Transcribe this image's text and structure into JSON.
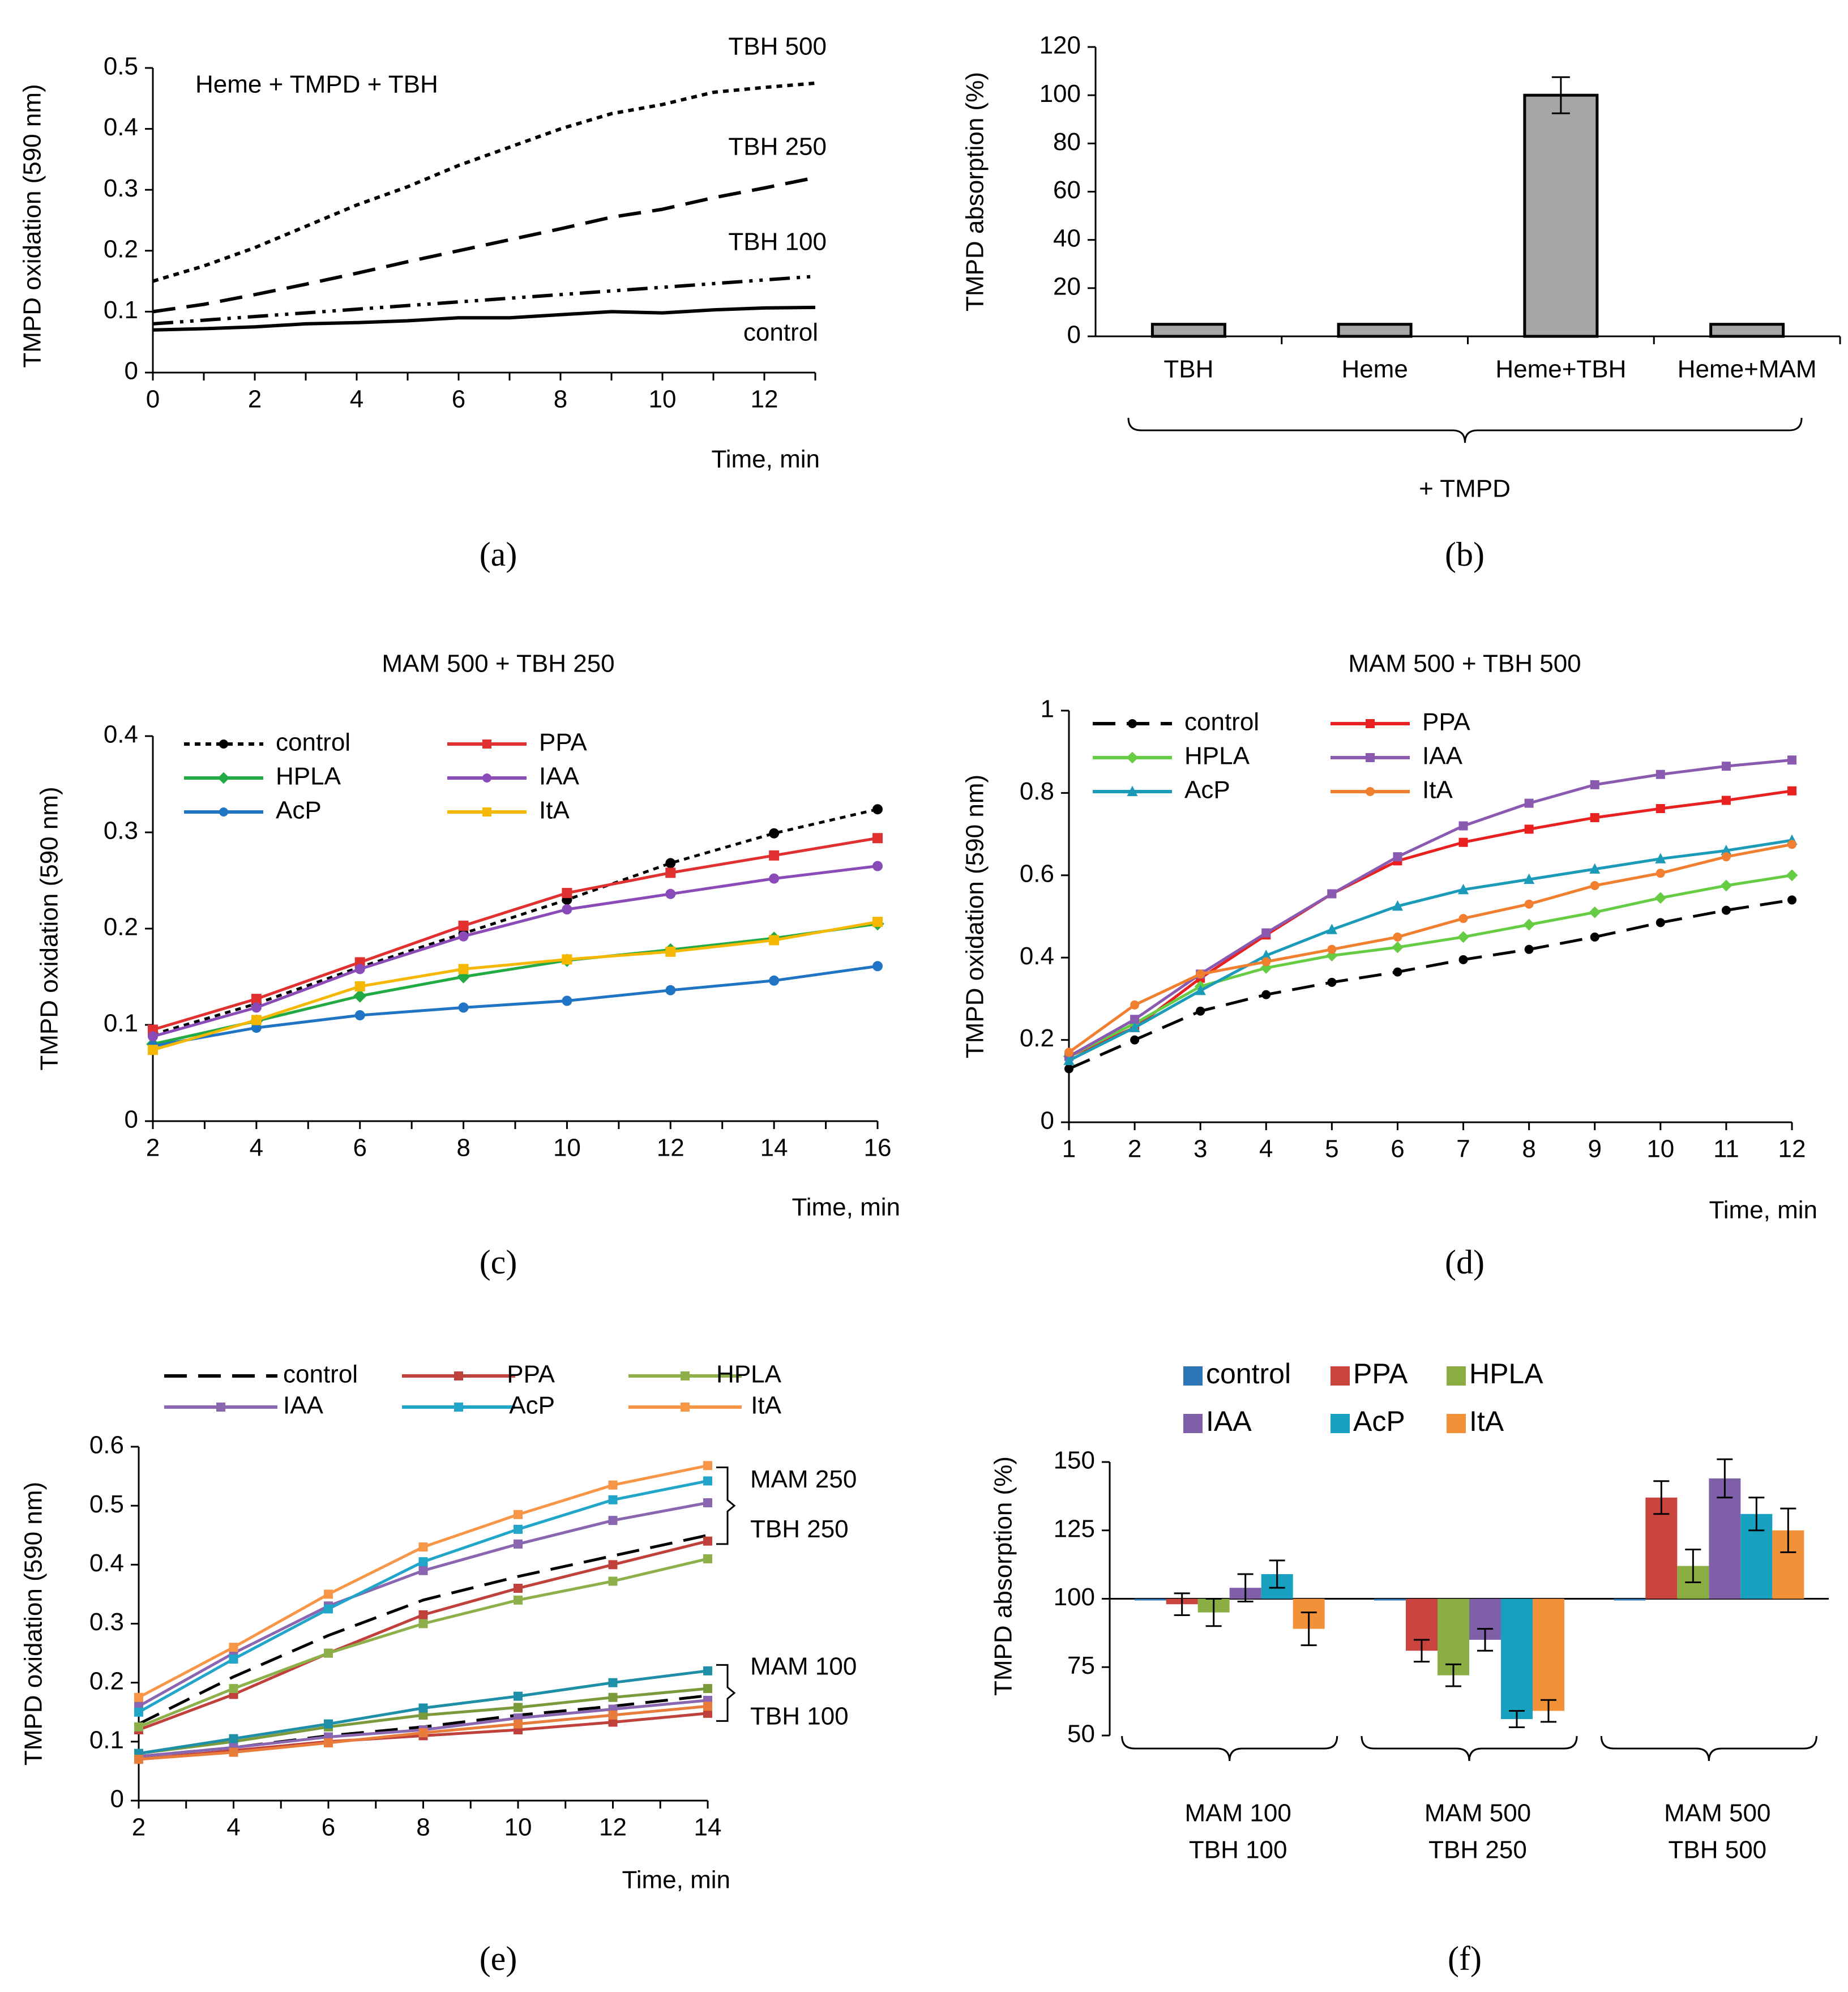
{
  "figure": {
    "panel_labels": [
      "(a)",
      "(b)",
      "(c)",
      "(d)",
      "(e)",
      "(f)"
    ]
  },
  "chart_data": [
    {
      "id": "a",
      "type": "line",
      "annotation": "Heme + TMPD + TBH",
      "xlabel": "Time, min",
      "ylabel": "TMPD oxidation (590 nm)",
      "xlim": [
        0,
        13
      ],
      "ylim": [
        0,
        0.5
      ],
      "xticks": [
        0,
        2,
        4,
        6,
        8,
        10,
        12
      ],
      "yticks": [
        0,
        0.1,
        0.2,
        0.3,
        0.4,
        0.5
      ],
      "series": [
        {
          "name": "TBH 500",
          "dash": "dot",
          "color": "#000000",
          "x": [
            0,
            1,
            2,
            3,
            4,
            5,
            6,
            7,
            8,
            9,
            10,
            11,
            12,
            13
          ],
          "y": [
            0.15,
            0.175,
            0.205,
            0.24,
            0.275,
            0.305,
            0.34,
            0.37,
            0.4,
            0.425,
            0.44,
            0.46,
            0.468,
            0.475
          ]
        },
        {
          "name": "TBH 250",
          "dash": "long",
          "color": "#000000",
          "x": [
            0,
            1,
            2,
            3,
            4,
            5,
            6,
            7,
            8,
            9,
            10,
            11,
            12,
            13
          ],
          "y": [
            0.1,
            0.112,
            0.128,
            0.145,
            0.163,
            0.182,
            0.2,
            0.218,
            0.236,
            0.255,
            0.268,
            0.287,
            0.303,
            0.32
          ]
        },
        {
          "name": "TBH 100",
          "dash": "dashdotdot",
          "color": "#000000",
          "x": [
            0,
            1,
            2,
            3,
            4,
            5,
            6,
            7,
            8,
            9,
            10,
            11,
            12,
            13
          ],
          "y": [
            0.08,
            0.086,
            0.092,
            0.098,
            0.104,
            0.11,
            0.116,
            0.122,
            0.128,
            0.134,
            0.14,
            0.146,
            0.152,
            0.158
          ]
        },
        {
          "name": "control",
          "dash": "solid",
          "color": "#000000",
          "x": [
            0,
            1,
            2,
            3,
            4,
            5,
            6,
            7,
            8,
            9,
            10,
            11,
            12,
            13
          ],
          "y": [
            0.07,
            0.072,
            0.075,
            0.08,
            0.082,
            0.085,
            0.09,
            0.09,
            0.095,
            0.1,
            0.098,
            0.103,
            0.106,
            0.107
          ]
        }
      ]
    },
    {
      "id": "b",
      "type": "bar",
      "ylabel": "TMPD absorption (%)",
      "ylim": [
        0,
        120
      ],
      "yticks": [
        0,
        20,
        40,
        60,
        80,
        100,
        120
      ],
      "categories": [
        "TBH",
        "Heme",
        "Heme+TBH",
        "Heme+MAM"
      ],
      "values": [
        5,
        5,
        100,
        5
      ],
      "errors": [
        0.5,
        0.5,
        7.5,
        0.5
      ],
      "bar_color": "#a6a6a6",
      "group_label": "+ TMPD"
    },
    {
      "id": "c",
      "type": "line",
      "title": "MAM 500 + TBH 250",
      "xlabel": "Time, min",
      "ylabel": "TMPD oxidation (590 nm)",
      "xlim": [
        2,
        16
      ],
      "ylim": [
        0,
        0.4
      ],
      "xticks": [
        2,
        4,
        6,
        8,
        10,
        12,
        14,
        16
      ],
      "yticks": [
        0,
        0.1,
        0.2,
        0.3,
        0.4
      ],
      "x": [
        2,
        4,
        6,
        8,
        10,
        12,
        14,
        16
      ],
      "series": [
        {
          "name": "control",
          "color": "#000000",
          "dash": "dot",
          "marker": "circle",
          "values": [
            0.09,
            0.122,
            0.16,
            0.195,
            0.23,
            0.268,
            0.299,
            0.324
          ]
        },
        {
          "name": "PPA",
          "color": "#e03030",
          "dash": "solid",
          "marker": "square",
          "values": [
            0.095,
            0.127,
            0.165,
            0.203,
            0.237,
            0.258,
            0.276,
            0.294
          ]
        },
        {
          "name": "HPLA",
          "color": "#22aa44",
          "dash": "solid",
          "marker": "diamond",
          "values": [
            0.08,
            0.104,
            0.13,
            0.15,
            0.167,
            0.178,
            0.19,
            0.205
          ]
        },
        {
          "name": "IAA",
          "color": "#8a4ab8",
          "dash": "solid",
          "marker": "circle",
          "values": [
            0.088,
            0.118,
            0.158,
            0.192,
            0.22,
            0.236,
            0.252,
            0.265
          ]
        },
        {
          "name": "AcP",
          "color": "#1f74c4",
          "dash": "solid",
          "marker": "circle",
          "values": [
            0.078,
            0.097,
            0.11,
            0.118,
            0.125,
            0.136,
            0.146,
            0.161
          ]
        },
        {
          "name": "ItA",
          "color": "#f5b800",
          "dash": "solid",
          "marker": "square",
          "values": [
            0.074,
            0.105,
            0.14,
            0.158,
            0.168,
            0.176,
            0.188,
            0.207
          ]
        }
      ]
    },
    {
      "id": "d",
      "type": "line",
      "title": "MAM 500 + TBH 500",
      "xlabel": "Time, min",
      "ylabel": "TMPD oxidation (590 nm)",
      "xlim": [
        1,
        12
      ],
      "ylim": [
        0,
        1
      ],
      "xticks": [
        1,
        2,
        3,
        4,
        5,
        6,
        7,
        8,
        9,
        10,
        11,
        12
      ],
      "yticks": [
        0,
        0.2,
        0.4,
        0.6,
        0.8,
        1
      ],
      "x": [
        1,
        2,
        3,
        4,
        5,
        6,
        7,
        8,
        9,
        10,
        11,
        12
      ],
      "series": [
        {
          "name": "control",
          "color": "#000000",
          "dash": "long",
          "marker": "circle",
          "values": [
            0.13,
            0.2,
            0.27,
            0.31,
            0.34,
            0.365,
            0.395,
            0.42,
            0.45,
            0.485,
            0.515,
            0.54
          ]
        },
        {
          "name": "PPA",
          "color": "#e82020",
          "dash": "solid",
          "marker": "square",
          "values": [
            0.16,
            0.23,
            0.35,
            0.455,
            0.555,
            0.635,
            0.68,
            0.712,
            0.74,
            0.762,
            0.782,
            0.805
          ]
        },
        {
          "name": "HPLA",
          "color": "#66cc44",
          "dash": "solid",
          "marker": "diamond",
          "values": [
            0.16,
            0.24,
            0.33,
            0.375,
            0.405,
            0.425,
            0.45,
            0.48,
            0.51,
            0.545,
            0.575,
            0.6
          ]
        },
        {
          "name": "IAA",
          "color": "#8a5ab0",
          "dash": "solid",
          "marker": "square",
          "values": [
            0.16,
            0.25,
            0.36,
            0.46,
            0.555,
            0.645,
            0.72,
            0.775,
            0.82,
            0.845,
            0.865,
            0.88
          ]
        },
        {
          "name": "AcP",
          "color": "#1b9bb8",
          "dash": "solid",
          "marker": "triangle",
          "values": [
            0.15,
            0.23,
            0.32,
            0.405,
            0.468,
            0.525,
            0.565,
            0.59,
            0.615,
            0.64,
            0.66,
            0.685
          ]
        },
        {
          "name": "ItA",
          "color": "#f08030",
          "dash": "solid",
          "marker": "circle",
          "values": [
            0.17,
            0.285,
            0.36,
            0.39,
            0.42,
            0.45,
            0.495,
            0.53,
            0.575,
            0.605,
            0.645,
            0.675
          ]
        }
      ]
    },
    {
      "id": "e",
      "type": "line",
      "xlabel": "Time, min",
      "ylabel": "TMPD oxidation (590 nm)",
      "xlim": [
        2,
        14
      ],
      "ylim": [
        0,
        0.6
      ],
      "xticks": [
        2,
        4,
        6,
        8,
        10,
        12,
        14
      ],
      "yticks": [
        0,
        0.1,
        0.2,
        0.3,
        0.4,
        0.5,
        0.6
      ],
      "x": [
        2,
        4,
        6,
        8,
        10,
        12,
        14
      ],
      "group_labels": [
        {
          "line1": "MAM 250",
          "line2": "TBH 250",
          "range": [
            0.435,
            0.565
          ]
        },
        {
          "line1": "MAM 100",
          "line2": "TBH 100",
          "range": [
            0.135,
            0.23
          ]
        }
      ],
      "series": [
        {
          "name": "control",
          "group": "MAM 250 TBH 250",
          "color": "#000000",
          "dash": "long",
          "marker": "none",
          "values": [
            0.13,
            0.21,
            0.28,
            0.34,
            0.38,
            0.415,
            0.45
          ]
        },
        {
          "name": "PPA",
          "group": "MAM 250 TBH 250",
          "color": "#c0413c",
          "dash": "solid",
          "marker": "square",
          "values": [
            0.12,
            0.18,
            0.25,
            0.315,
            0.36,
            0.4,
            0.44
          ]
        },
        {
          "name": "HPLA",
          "group": "MAM 250 TBH 250",
          "color": "#8db04a",
          "dash": "solid",
          "marker": "square",
          "values": [
            0.125,
            0.19,
            0.25,
            0.3,
            0.34,
            0.372,
            0.41
          ]
        },
        {
          "name": "IAA",
          "group": "MAM 250 TBH 250",
          "color": "#8a65b0",
          "dash": "solid",
          "marker": "square",
          "values": [
            0.16,
            0.25,
            0.33,
            0.39,
            0.435,
            0.475,
            0.505
          ]
        },
        {
          "name": "AcP",
          "group": "MAM 250 TBH 250",
          "color": "#21a5c8",
          "dash": "solid",
          "marker": "square",
          "values": [
            0.15,
            0.24,
            0.325,
            0.405,
            0.46,
            0.51,
            0.542
          ]
        },
        {
          "name": "ItA",
          "group": "MAM 250 TBH 250",
          "color": "#f79646",
          "dash": "solid",
          "marker": "square",
          "values": [
            0.175,
            0.26,
            0.35,
            0.43,
            0.485,
            0.535,
            0.568
          ]
        },
        {
          "name": "control",
          "group": "MAM 100 TBH 100",
          "color": "#000000",
          "dash": "long",
          "marker": "none",
          "values": [
            0.075,
            0.09,
            0.11,
            0.125,
            0.145,
            0.16,
            0.178
          ]
        },
        {
          "name": "PPA",
          "group": "MAM 100 TBH 100",
          "color": "#c0413c",
          "dash": "solid",
          "marker": "square",
          "values": [
            0.07,
            0.085,
            0.1,
            0.11,
            0.12,
            0.133,
            0.148
          ]
        },
        {
          "name": "HPLA",
          "group": "MAM 100 TBH 100",
          "color": "#7a9a3c",
          "dash": "solid",
          "marker": "square",
          "values": [
            0.08,
            0.1,
            0.125,
            0.145,
            0.158,
            0.175,
            0.19
          ]
        },
        {
          "name": "IAA",
          "group": "MAM 100 TBH 100",
          "color": "#8a65b0",
          "dash": "solid",
          "marker": "square",
          "values": [
            0.075,
            0.09,
            0.108,
            0.12,
            0.14,
            0.155,
            0.17
          ]
        },
        {
          "name": "AcP",
          "group": "MAM 100 TBH 100",
          "color": "#1f8fa8",
          "dash": "solid",
          "marker": "square",
          "values": [
            0.08,
            0.105,
            0.13,
            0.157,
            0.177,
            0.2,
            0.22
          ]
        },
        {
          "name": "ItA",
          "group": "MAM 100 TBH 100",
          "color": "#e87c3a",
          "dash": "solid",
          "marker": "square",
          "values": [
            0.07,
            0.082,
            0.098,
            0.115,
            0.13,
            0.145,
            0.16
          ]
        }
      ]
    },
    {
      "id": "f",
      "type": "bar",
      "ylabel": "TMPD absorption (%)",
      "ylim": [
        50,
        150
      ],
      "yticks": [
        50,
        75,
        100,
        125,
        150
      ],
      "baseline": 100,
      "categories": [
        {
          "line1": "MAM 100",
          "line2": "TBH 100"
        },
        {
          "line1": "MAM 500",
          "line2": "TBH 250"
        },
        {
          "line1": "MAM 500",
          "line2": "TBH 500"
        }
      ],
      "series": [
        {
          "name": "control",
          "color": "#2e75b6",
          "values": [
            100,
            100,
            100
          ],
          "errors": [
            0,
            0,
            0
          ]
        },
        {
          "name": "PPA",
          "color": "#c9443c",
          "values": [
            98,
            81,
            137
          ],
          "errors": [
            4,
            4,
            6
          ]
        },
        {
          "name": "HPLA",
          "color": "#8aae44",
          "values": [
            95,
            72,
            112
          ],
          "errors": [
            5,
            4,
            6
          ]
        },
        {
          "name": "IAA",
          "color": "#7f5fa8",
          "values": [
            104,
            85,
            144
          ],
          "errors": [
            5,
            4,
            7
          ]
        },
        {
          "name": "AcP",
          "color": "#17a0c0",
          "values": [
            109,
            56,
            131
          ],
          "errors": [
            5,
            3,
            6
          ]
        },
        {
          "name": "ItA",
          "color": "#f29138",
          "values": [
            89,
            59,
            125
          ],
          "errors": [
            6,
            4,
            8
          ]
        }
      ]
    }
  ]
}
